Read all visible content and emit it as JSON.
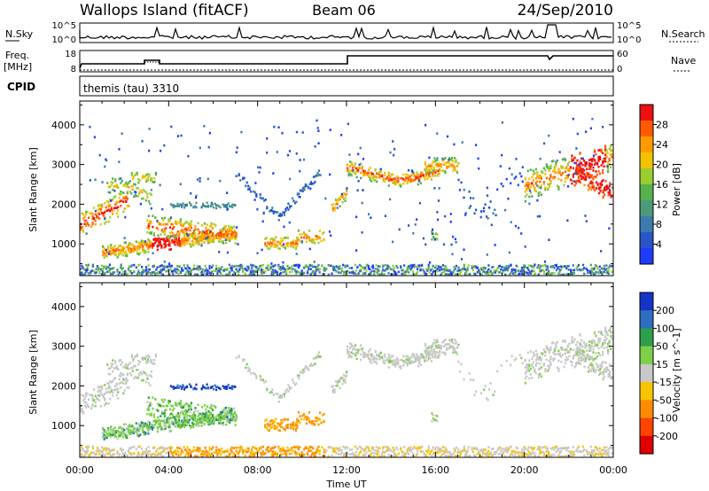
{
  "header": {
    "station": "Wallops Island (fitACF)",
    "beam": "Beam 06",
    "date": "24/Sep/2010"
  },
  "sky_panel": {
    "left_label": "N.Sky",
    "right_label": "N.Search",
    "tick_top": "10^5",
    "tick_bottom": "10^0"
  },
  "freq_panel": {
    "left_label_1": "Freq.",
    "left_label_2": "[MHz]",
    "right_label": "Nave",
    "left_tick_top": "18",
    "left_tick_bottom": "8",
    "right_tick_top": "60",
    "right_tick_bottom": "0"
  },
  "cpid_panel": {
    "label": "CPID",
    "value": "themis (tau) 3310"
  },
  "chart_data": [
    {
      "type": "heatmap",
      "name": "power",
      "ylabel": "Slant Range [km]",
      "colorbar_label": "Power [dB]",
      "ylim": [
        200,
        4600
      ],
      "yticks": [
        "4000",
        "3000",
        "2000",
        "1000"
      ],
      "colorbar_ticks": [
        "28",
        "24",
        "20",
        "16",
        "12",
        "8",
        "4"
      ],
      "colors": [
        "#1e3cff",
        "#2a55c8",
        "#3d7ab0",
        "#4c9a7a",
        "#55b24c",
        "#9acd32",
        "#f2c200",
        "#ff9a00",
        "#ff5a00",
        "#ee1010"
      ]
    },
    {
      "type": "heatmap",
      "name": "velocity",
      "ylabel": "Slant Range [km]",
      "colorbar_label": "Velocity [m s^-1]",
      "ylim": [
        200,
        4600
      ],
      "yticks": [
        "4000",
        "3000",
        "2000",
        "1000"
      ],
      "colorbar_ticks": [
        "200",
        "100",
        "50",
        "15",
        "-15",
        "-50",
        "-100",
        "-200"
      ],
      "xlabel": "Time UT",
      "xticks": [
        "00:00",
        "04:00",
        "08:00",
        "12:00",
        "16:00",
        "20:00",
        "00:00"
      ],
      "colors": [
        "#1434c8",
        "#2e6fc0",
        "#2e9f4a",
        "#7ed04b",
        "#c8c8c8",
        "#f6c400",
        "#ff8c00",
        "#ff4400",
        "#e00000"
      ]
    }
  ]
}
